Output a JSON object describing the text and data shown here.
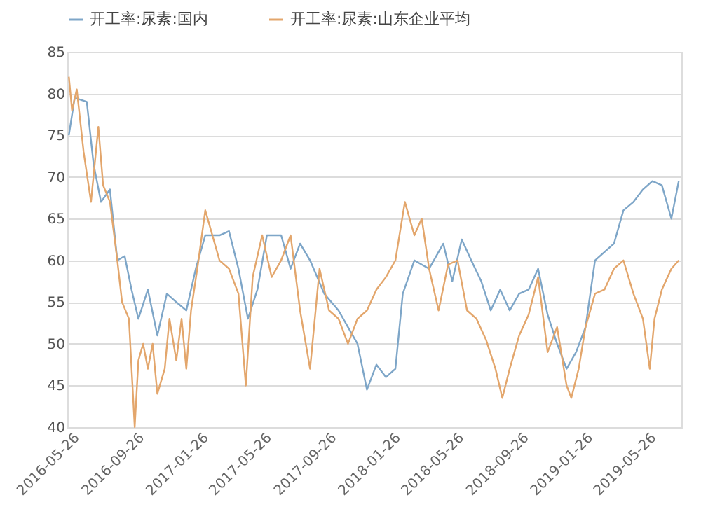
{
  "chart_data": {
    "type": "line",
    "ylim": [
      40,
      85
    ],
    "yticks": [
      40,
      45,
      50,
      55,
      60,
      65,
      70,
      75,
      80,
      85
    ],
    "xlim": [
      "2016-05-18",
      "2019-07-28"
    ],
    "xticks": [
      {
        "value": "2016-05-26",
        "label": "2016-05-26"
      },
      {
        "value": "2016-09-26",
        "label": "2016-09-26"
      },
      {
        "value": "2017-01-26",
        "label": "2017-01-26"
      },
      {
        "value": "2017-05-26",
        "label": "2017-05-26"
      },
      {
        "value": "2017-09-26",
        "label": "2017-09-26"
      },
      {
        "value": "2018-01-26",
        "label": "2018-01-26"
      },
      {
        "value": "2018-05-26",
        "label": "2018-05-26"
      },
      {
        "value": "2018-09-26",
        "label": "2018-09-26"
      },
      {
        "value": "2019-01-26",
        "label": "2019-01-26"
      },
      {
        "value": "2019-05-26",
        "label": "2019-05-26"
      }
    ],
    "grid": "y",
    "legend": "top",
    "line_style": "solid",
    "marker": "none",
    "series": [
      {
        "name": "开工率:尿素:国内",
        "color": "#7ea6c8",
        "x": [
          "2016-05-21",
          "2016-06-01",
          "2016-06-24",
          "2016-07-07",
          "2016-07-21",
          "2016-08-07",
          "2016-08-21",
          "2016-09-04",
          "2016-09-17",
          "2016-09-30",
          "2016-10-18",
          "2016-11-05",
          "2016-11-23",
          "2016-12-11",
          "2016-12-30",
          "2017-01-17",
          "2017-02-04",
          "2017-03-03",
          "2017-03-21",
          "2017-04-08",
          "2017-04-26",
          "2017-05-14",
          "2017-06-01",
          "2017-06-28",
          "2017-07-16",
          "2017-08-03",
          "2017-08-22",
          "2017-09-18",
          "2017-10-15",
          "2017-11-02",
          "2017-11-20",
          "2017-12-08",
          "2017-12-26",
          "2018-01-13",
          "2018-01-31",
          "2018-02-14",
          "2018-03-08",
          "2018-04-05",
          "2018-05-02",
          "2018-05-19",
          "2018-06-06",
          "2018-06-24",
          "2018-07-13",
          "2018-07-31",
          "2018-08-18",
          "2018-09-05",
          "2018-09-23",
          "2018-10-11",
          "2018-10-29",
          "2018-11-16",
          "2018-12-04",
          "2018-12-22",
          "2019-01-09",
          "2019-01-27",
          "2019-02-14",
          "2019-03-04",
          "2019-03-22",
          "2019-04-09",
          "2019-04-28",
          "2019-05-16",
          "2019-06-03",
          "2019-06-21",
          "2019-07-09",
          "2019-07-23"
        ],
        "values": [
          75,
          79.5,
          79,
          71.5,
          67,
          68.5,
          60,
          60.5,
          56.5,
          53,
          56.5,
          51,
          56,
          55,
          54,
          59,
          63,
          63,
          63.5,
          59,
          53,
          56.5,
          63,
          63,
          59,
          62,
          60,
          56,
          54,
          52,
          50,
          44.5,
          47.5,
          46,
          47,
          56,
          60,
          59,
          62,
          57.5,
          62.5,
          60,
          57.5,
          54,
          56.5,
          54,
          56,
          56.5,
          59,
          53.5,
          50,
          47,
          49,
          52,
          60,
          61,
          62,
          66,
          67,
          68.5,
          69.5,
          69,
          65,
          69.5
        ]
      },
      {
        "name": "开工率:尿素:山东企业平均",
        "color": "#e3a66c",
        "x": [
          "2016-05-21",
          "2016-05-27",
          "2016-06-05",
          "2016-06-18",
          "2016-07-02",
          "2016-07-16",
          "2016-07-25",
          "2016-08-07",
          "2016-08-21",
          "2016-08-30",
          "2016-09-12",
          "2016-09-23",
          "2016-09-30",
          "2016-10-09",
          "2016-10-18",
          "2016-10-27",
          "2016-11-05",
          "2016-11-19",
          "2016-11-28",
          "2016-12-11",
          "2016-12-21",
          "2016-12-30",
          "2017-01-08",
          "2017-01-21",
          "2017-02-04",
          "2017-02-13",
          "2017-03-03",
          "2017-03-21",
          "2017-04-08",
          "2017-04-22",
          "2017-05-05",
          "2017-05-23",
          "2017-06-10",
          "2017-06-28",
          "2017-07-16",
          "2017-08-03",
          "2017-08-22",
          "2017-09-09",
          "2017-09-27",
          "2017-10-15",
          "2017-11-02",
          "2017-11-20",
          "2017-12-08",
          "2017-12-26",
          "2018-01-13",
          "2018-01-31",
          "2018-02-18",
          "2018-03-08",
          "2018-03-22",
          "2018-04-05",
          "2018-04-23",
          "2018-05-11",
          "2018-05-29",
          "2018-06-16",
          "2018-07-04",
          "2018-07-22",
          "2018-08-09",
          "2018-08-22",
          "2018-09-05",
          "2018-09-23",
          "2018-10-11",
          "2018-10-29",
          "2018-11-16",
          "2018-12-04",
          "2018-12-22",
          "2018-12-31",
          "2019-01-14",
          "2019-01-27",
          "2019-02-14",
          "2019-03-04",
          "2019-03-22",
          "2019-04-09",
          "2019-04-28",
          "2019-05-16",
          "2019-05-29",
          "2019-06-07",
          "2019-06-21",
          "2019-07-09",
          "2019-07-23"
        ],
        "values": [
          82,
          78,
          80.5,
          73,
          67,
          76,
          69,
          67,
          60,
          55,
          53,
          40,
          48,
          50,
          47,
          50,
          44,
          47,
          53,
          48,
          53,
          47,
          54,
          59.5,
          66,
          64,
          60,
          59,
          56,
          45,
          58,
          63,
          58,
          60,
          63,
          54,
          47,
          59,
          54,
          53,
          50,
          53,
          54,
          56.5,
          58,
          60,
          67,
          63,
          65,
          59,
          54,
          59.5,
          60,
          54,
          53,
          50.5,
          47,
          43.5,
          47,
          51,
          53.5,
          58,
          49,
          52,
          45,
          43.5,
          47,
          52,
          56,
          56.5,
          59,
          60,
          56,
          53,
          47,
          53,
          56.5,
          59,
          60
        ]
      }
    ]
  }
}
